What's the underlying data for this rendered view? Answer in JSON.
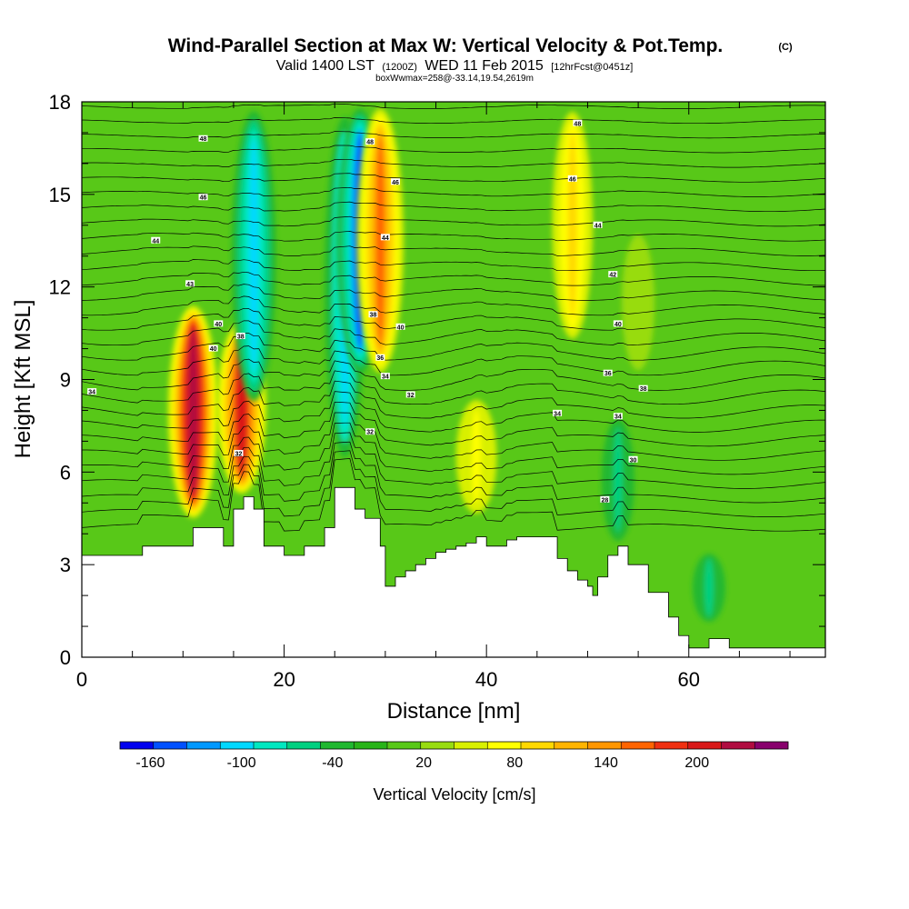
{
  "chart_data": {
    "type": "heatmap",
    "title": "Wind-Parallel Section at Max W: Vertical Velocity & Pot.Temp.",
    "title_tag": "(C)",
    "subtitle_valid": "Valid 1400 LST",
    "subtitle_utc": "(1200Z)",
    "subtitle_date": "WED 11 Feb 2015",
    "subtitle_fcst": "[12hrFcst@0451z]",
    "subtitle_box": "boxWwmax=258@-33.14,19.54,2619m",
    "xlabel": "Distance [nm]",
    "ylabel": "Height [Kft MSL]",
    "xlim": [
      0,
      73.5
    ],
    "ylim": [
      0,
      18
    ],
    "xticks": [
      "0",
      "20",
      "40",
      "60"
    ],
    "xtick_values": [
      0,
      20,
      40,
      60
    ],
    "yticks": [
      "0",
      "3",
      "6",
      "9",
      "12",
      "15",
      "18"
    ],
    "ytick_values": [
      0,
      3,
      6,
      9,
      12,
      15,
      18
    ],
    "colorbar": {
      "label": "Vertical Velocity [cm/s]",
      "tick_labels": [
        "-160",
        "-100",
        "-40",
        "20",
        "80",
        "140",
        "200"
      ],
      "tick_values": [
        -160,
        -100,
        -40,
        20,
        80,
        140,
        200
      ],
      "range": [
        -180,
        260
      ],
      "colors": [
        "#0000ee",
        "#0050ff",
        "#0098ff",
        "#00d8ff",
        "#00e8c0",
        "#00d080",
        "#20b830",
        "#28b418",
        "#58c818",
        "#98dc10",
        "#d8f000",
        "#ffff00",
        "#ffd800",
        "#ffb400",
        "#ff9600",
        "#ff6400",
        "#f03010",
        "#d81818",
        "#b00c40",
        "#88006c"
      ]
    },
    "velocity_features": [
      {
        "x": 11,
        "zmin": 4.4,
        "zmax": 11.5,
        "w": 230
      },
      {
        "x": 15.8,
        "zmin": 5.2,
        "zmax": 11,
        "w": 200
      },
      {
        "x": 17,
        "zmin": 8,
        "zmax": 18,
        "w": -110
      },
      {
        "x": 26,
        "zmin": 6,
        "zmax": 18,
        "w": -100
      },
      {
        "x": 27.5,
        "zmin": 9,
        "zmax": 18,
        "w": -140
      },
      {
        "x": 29.5,
        "zmin": 9,
        "zmax": 18,
        "w": 150
      },
      {
        "x": 39,
        "zmin": 4.5,
        "zmax": 8.5,
        "w": 80
      },
      {
        "x": 48.5,
        "zmin": 10,
        "zmax": 18,
        "w": 90
      },
      {
        "x": 53,
        "zmin": 3.5,
        "zmax": 8,
        "w": -60
      },
      {
        "x": 55,
        "zmin": 9,
        "zmax": 14,
        "w": 30
      },
      {
        "x": 62,
        "zmin": 1,
        "zmax": 3.5,
        "w": -50
      }
    ],
    "terrain_kft": {
      "x": [
        0,
        3.5,
        6,
        9,
        11,
        13,
        14,
        15,
        16,
        17,
        18,
        20,
        22,
        24,
        25,
        26,
        27,
        28,
        29.5,
        30,
        31,
        32,
        33,
        34,
        35,
        36,
        37,
        38,
        39,
        40,
        41,
        42,
        43,
        46,
        47,
        48,
        49,
        50,
        50.5,
        51,
        52,
        53,
        54,
        56,
        58,
        59,
        60,
        61,
        62,
        64,
        65,
        73.5
      ],
      "z": [
        3.3,
        3.3,
        3.6,
        3.6,
        4.2,
        4.2,
        3.6,
        4.8,
        5.2,
        4.8,
        3.6,
        3.3,
        3.6,
        4.2,
        5.5,
        5.5,
        4.8,
        4.5,
        3.6,
        2.3,
        2.6,
        2.8,
        3.0,
        3.2,
        3.4,
        3.5,
        3.6,
        3.7,
        3.9,
        3.6,
        3.6,
        3.8,
        3.9,
        3.9,
        3.2,
        2.8,
        2.5,
        2.3,
        2.0,
        2.6,
        3.3,
        3.6,
        3.0,
        2.1,
        1.3,
        0.7,
        0.3,
        0.3,
        0.6,
        0.3,
        0.3,
        0.3
      ]
    },
    "theta_contour_labels": [
      {
        "x": 12,
        "z": 16.8,
        "text": "48"
      },
      {
        "x": 12,
        "z": 14.9,
        "text": "46"
      },
      {
        "x": 7.3,
        "z": 13.5,
        "text": "44"
      },
      {
        "x": 10.7,
        "z": 12.1,
        "text": "43"
      },
      {
        "x": 13.5,
        "z": 10.8,
        "text": "40"
      },
      {
        "x": 13,
        "z": 10,
        "text": "40"
      },
      {
        "x": 15.7,
        "z": 10.4,
        "text": "38"
      },
      {
        "x": 1,
        "z": 8.6,
        "text": "34"
      },
      {
        "x": 15.5,
        "z": 6.6,
        "text": "32"
      },
      {
        "x": 28.5,
        "z": 16.7,
        "text": "48"
      },
      {
        "x": 31,
        "z": 15.4,
        "text": "46"
      },
      {
        "x": 30,
        "z": 13.6,
        "text": "44"
      },
      {
        "x": 28.8,
        "z": 11.1,
        "text": "38"
      },
      {
        "x": 31.5,
        "z": 10.7,
        "text": "40"
      },
      {
        "x": 29.5,
        "z": 9.7,
        "text": "36"
      },
      {
        "x": 30,
        "z": 9.1,
        "text": "34"
      },
      {
        "x": 32.5,
        "z": 8.5,
        "text": "32"
      },
      {
        "x": 28.5,
        "z": 7.3,
        "text": "32"
      },
      {
        "x": 49,
        "z": 17.3,
        "text": "48"
      },
      {
        "x": 48.5,
        "z": 15.5,
        "text": "46"
      },
      {
        "x": 51,
        "z": 14,
        "text": "44"
      },
      {
        "x": 52.5,
        "z": 12.4,
        "text": "42"
      },
      {
        "x": 53,
        "z": 10.8,
        "text": "40"
      },
      {
        "x": 52,
        "z": 9.2,
        "text": "36"
      },
      {
        "x": 55.5,
        "z": 8.7,
        "text": "38"
      },
      {
        "x": 47,
        "z": 7.9,
        "text": "34"
      },
      {
        "x": 53,
        "z": 7.8,
        "text": "34"
      },
      {
        "x": 54.5,
        "z": 6.4,
        "text": "30"
      },
      {
        "x": 51.7,
        "z": 5.1,
        "text": "28"
      }
    ],
    "legend": "colorbar-bottom",
    "grid": false
  }
}
